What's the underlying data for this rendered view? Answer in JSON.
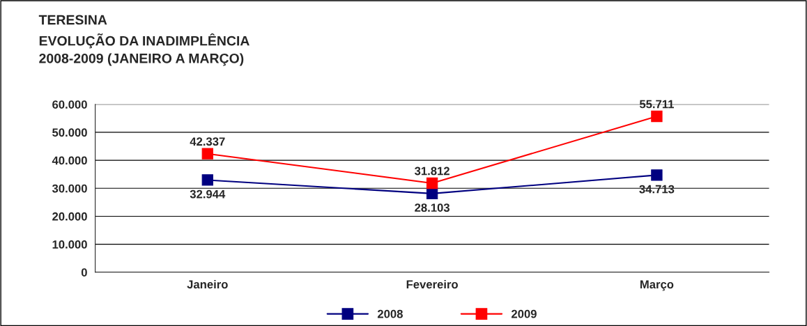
{
  "chart_data": {
    "type": "line",
    "title": "TERESINA\nEVOLUÇÃO DA INADIMPLÊNCIA\n2008-2009 (JANEIRO A MARÇO)",
    "categories": [
      "Janeiro",
      "Fevereiro",
      "Março"
    ],
    "series": [
      {
        "name": "2008",
        "color": "#000080",
        "values": [
          32944,
          28103,
          34713
        ],
        "value_labels": [
          "32.944",
          "28.103",
          "34.713"
        ]
      },
      {
        "name": "2009",
        "color": "#ff0000",
        "values": [
          42337,
          31812,
          55711
        ],
        "value_labels": [
          "42.337",
          "31.812",
          "55.711"
        ]
      }
    ],
    "ylim": [
      0,
      60000
    ],
    "yticks": [
      {
        "value": 0,
        "label": "0"
      },
      {
        "value": 10000,
        "label": "10.000"
      },
      {
        "value": 20000,
        "label": "20.000"
      },
      {
        "value": 30000,
        "label": "30.000"
      },
      {
        "value": 40000,
        "label": "40.000"
      },
      {
        "value": 50000,
        "label": "50.000"
      },
      {
        "value": 60000,
        "label": "60.000"
      }
    ],
    "grid": "y",
    "legend": "bottom",
    "marker": "square",
    "line_style": "solid"
  }
}
